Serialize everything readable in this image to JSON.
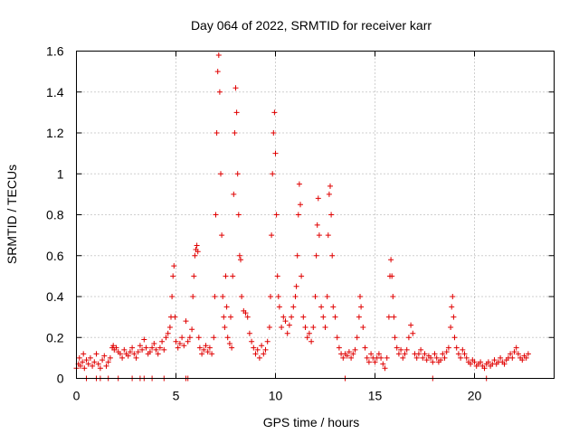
{
  "chart_data": {
    "type": "scatter",
    "title": "Day 064 of 2022, SRMTID for receiver karr",
    "xlabel": "GPS time / hours",
    "ylabel": "SRMTID / TECUs",
    "xlim": [
      0,
      24
    ],
    "ylim": [
      0,
      1.6
    ],
    "xticks": [
      0,
      5,
      10,
      15,
      20
    ],
    "xtick_labels": [
      "0",
      "5",
      "10",
      "15",
      "20"
    ],
    "yticks": [
      0,
      0.2,
      0.4,
      0.6,
      0.8,
      1.0,
      1.2,
      1.4,
      1.6
    ],
    "ytick_labels": [
      "0",
      "0.2",
      "0.4",
      "0.6",
      "0.8",
      "1",
      "1.2",
      "1.4",
      "1.6"
    ],
    "grid": true,
    "marker": "+",
    "marker_color": "#e00000",
    "series": [
      {
        "name": "SRMTID",
        "points": [
          [
            0.0,
            0.05
          ],
          [
            0.1,
            0.07
          ],
          [
            0.15,
            0.1
          ],
          [
            0.2,
            0.06
          ],
          [
            0.3,
            0.08
          ],
          [
            0.35,
            0.12
          ],
          [
            0.4,
            0.05
          ],
          [
            0.5,
            0.09
          ],
          [
            0.6,
            0.07
          ],
          [
            0.7,
            0.1
          ],
          [
            0.8,
            0.06
          ],
          [
            0.9,
            0.08
          ],
          [
            1.0,
            0.12
          ],
          [
            1.1,
            0.07
          ],
          [
            1.2,
            0.05
          ],
          [
            1.3,
            0.09
          ],
          [
            1.4,
            0.11
          ],
          [
            1.5,
            0.06
          ],
          [
            1.6,
            0.08
          ],
          [
            1.7,
            0.1
          ],
          [
            1.8,
            0.15
          ],
          [
            1.85,
            0.16
          ],
          [
            1.9,
            0.14
          ],
          [
            2.0,
            0.15
          ],
          [
            2.1,
            0.13
          ],
          [
            2.2,
            0.12
          ],
          [
            2.3,
            0.1
          ],
          [
            2.4,
            0.14
          ],
          [
            2.5,
            0.12
          ],
          [
            2.6,
            0.11
          ],
          [
            2.7,
            0.13
          ],
          [
            2.8,
            0.15
          ],
          [
            2.9,
            0.12
          ],
          [
            3.0,
            0.1
          ],
          [
            3.1,
            0.13
          ],
          [
            3.2,
            0.16
          ],
          [
            3.3,
            0.14
          ],
          [
            3.4,
            0.19
          ],
          [
            3.5,
            0.15
          ],
          [
            3.6,
            0.12
          ],
          [
            3.7,
            0.13
          ],
          [
            3.8,
            0.15
          ],
          [
            3.9,
            0.17
          ],
          [
            4.0,
            0.14
          ],
          [
            4.1,
            0.12
          ],
          [
            4.2,
            0.15
          ],
          [
            4.3,
            0.18
          ],
          [
            4.4,
            0.14
          ],
          [
            4.5,
            0.2
          ],
          [
            4.6,
            0.22
          ],
          [
            4.7,
            0.25
          ],
          [
            4.75,
            0.3
          ],
          [
            4.8,
            0.4
          ],
          [
            4.85,
            0.5
          ],
          [
            4.9,
            0.55
          ],
          [
            4.95,
            0.3
          ],
          [
            5.0,
            0.18
          ],
          [
            5.1,
            0.15
          ],
          [
            5.2,
            0.17
          ],
          [
            5.3,
            0.2
          ],
          [
            5.4,
            0.16
          ],
          [
            5.5,
            0.28
          ],
          [
            5.6,
            0.18
          ],
          [
            5.7,
            0.2
          ],
          [
            5.8,
            0.24
          ],
          [
            5.85,
            0.4
          ],
          [
            5.9,
            0.5
          ],
          [
            5.95,
            0.6
          ],
          [
            6.0,
            0.63
          ],
          [
            6.05,
            0.65
          ],
          [
            6.1,
            0.62
          ],
          [
            6.15,
            0.2
          ],
          [
            6.2,
            0.15
          ],
          [
            6.3,
            0.12
          ],
          [
            6.4,
            0.14
          ],
          [
            6.5,
            0.16
          ],
          [
            6.6,
            0.13
          ],
          [
            6.7,
            0.15
          ],
          [
            6.8,
            0.12
          ],
          [
            6.9,
            0.2
          ],
          [
            6.95,
            0.4
          ],
          [
            7.0,
            0.8
          ],
          [
            7.05,
            1.2
          ],
          [
            7.1,
            1.5
          ],
          [
            7.15,
            1.58
          ],
          [
            7.2,
            1.4
          ],
          [
            7.25,
            1.0
          ],
          [
            7.3,
            0.7
          ],
          [
            7.35,
            0.4
          ],
          [
            7.4,
            0.3
          ],
          [
            7.45,
            0.25
          ],
          [
            7.5,
            0.5
          ],
          [
            7.55,
            0.35
          ],
          [
            7.6,
            0.2
          ],
          [
            7.7,
            0.17
          ],
          [
            7.75,
            0.3
          ],
          [
            7.8,
            0.15
          ],
          [
            7.85,
            0.5
          ],
          [
            7.9,
            0.9
          ],
          [
            7.95,
            1.2
          ],
          [
            8.0,
            1.42
          ],
          [
            8.05,
            1.3
          ],
          [
            8.1,
            1.0
          ],
          [
            8.15,
            0.8
          ],
          [
            8.2,
            0.6
          ],
          [
            8.25,
            0.58
          ],
          [
            8.3,
            0.4
          ],
          [
            8.4,
            0.33
          ],
          [
            8.5,
            0.32
          ],
          [
            8.6,
            0.3
          ],
          [
            8.7,
            0.22
          ],
          [
            8.8,
            0.18
          ],
          [
            8.9,
            0.15
          ],
          [
            9.0,
            0.12
          ],
          [
            9.1,
            0.14
          ],
          [
            9.2,
            0.1
          ],
          [
            9.3,
            0.16
          ],
          [
            9.4,
            0.12
          ],
          [
            9.5,
            0.14
          ],
          [
            9.6,
            0.18
          ],
          [
            9.7,
            0.25
          ],
          [
            9.75,
            0.4
          ],
          [
            9.8,
            0.7
          ],
          [
            9.85,
            1.0
          ],
          [
            9.9,
            1.2
          ],
          [
            9.95,
            1.3
          ],
          [
            10.0,
            1.1
          ],
          [
            10.05,
            0.8
          ],
          [
            10.1,
            0.5
          ],
          [
            10.15,
            0.4
          ],
          [
            10.2,
            0.35
          ],
          [
            10.3,
            0.25
          ],
          [
            10.4,
            0.3
          ],
          [
            10.5,
            0.28
          ],
          [
            10.6,
            0.22
          ],
          [
            10.7,
            0.26
          ],
          [
            10.8,
            0.3
          ],
          [
            10.9,
            0.35
          ],
          [
            11.0,
            0.4
          ],
          [
            11.05,
            0.45
          ],
          [
            11.1,
            0.6
          ],
          [
            11.15,
            0.8
          ],
          [
            11.2,
            0.95
          ],
          [
            11.25,
            0.85
          ],
          [
            11.3,
            0.5
          ],
          [
            11.4,
            0.3
          ],
          [
            11.5,
            0.25
          ],
          [
            11.6,
            0.2
          ],
          [
            11.7,
            0.22
          ],
          [
            11.8,
            0.18
          ],
          [
            11.9,
            0.25
          ],
          [
            12.0,
            0.4
          ],
          [
            12.05,
            0.6
          ],
          [
            12.1,
            0.75
          ],
          [
            12.15,
            0.88
          ],
          [
            12.2,
            0.7
          ],
          [
            12.3,
            0.35
          ],
          [
            12.4,
            0.3
          ],
          [
            12.5,
            0.25
          ],
          [
            12.6,
            0.4
          ],
          [
            12.65,
            0.7
          ],
          [
            12.7,
            0.9
          ],
          [
            12.75,
            0.94
          ],
          [
            12.8,
            0.8
          ],
          [
            12.85,
            0.6
          ],
          [
            12.9,
            0.35
          ],
          [
            13.0,
            0.3
          ],
          [
            13.1,
            0.2
          ],
          [
            13.2,
            0.15
          ],
          [
            13.3,
            0.12
          ],
          [
            13.4,
            0.1
          ],
          [
            13.5,
            0.12
          ],
          [
            13.6,
            0.11
          ],
          [
            13.7,
            0.13
          ],
          [
            13.8,
            0.1
          ],
          [
            13.9,
            0.12
          ],
          [
            14.0,
            0.14
          ],
          [
            14.1,
            0.2
          ],
          [
            14.2,
            0.3
          ],
          [
            14.25,
            0.4
          ],
          [
            14.3,
            0.35
          ],
          [
            14.4,
            0.25
          ],
          [
            14.5,
            0.15
          ],
          [
            14.6,
            0.1
          ],
          [
            14.7,
            0.08
          ],
          [
            14.8,
            0.12
          ],
          [
            14.9,
            0.1
          ],
          [
            15.0,
            0.08
          ],
          [
            15.1,
            0.1
          ],
          [
            15.2,
            0.12
          ],
          [
            15.3,
            0.1
          ],
          [
            15.4,
            0.07
          ],
          [
            15.5,
            0.05
          ],
          [
            15.6,
            0.1
          ],
          [
            15.7,
            0.3
          ],
          [
            15.75,
            0.5
          ],
          [
            15.8,
            0.58
          ],
          [
            15.85,
            0.5
          ],
          [
            15.9,
            0.4
          ],
          [
            15.95,
            0.3
          ],
          [
            16.0,
            0.2
          ],
          [
            16.1,
            0.15
          ],
          [
            16.2,
            0.12
          ],
          [
            16.3,
            0.14
          ],
          [
            16.4,
            0.1
          ],
          [
            16.5,
            0.12
          ],
          [
            16.6,
            0.14
          ],
          [
            16.7,
            0.2
          ],
          [
            16.8,
            0.26
          ],
          [
            16.9,
            0.22
          ],
          [
            17.0,
            0.12
          ],
          [
            17.1,
            0.1
          ],
          [
            17.2,
            0.12
          ],
          [
            17.3,
            0.14
          ],
          [
            17.4,
            0.1
          ],
          [
            17.5,
            0.12
          ],
          [
            17.6,
            0.09
          ],
          [
            17.7,
            0.11
          ],
          [
            17.8,
            0.1
          ],
          [
            17.9,
            0.08
          ],
          [
            18.0,
            0.12
          ],
          [
            18.1,
            0.1
          ],
          [
            18.2,
            0.08
          ],
          [
            18.3,
            0.09
          ],
          [
            18.4,
            0.12
          ],
          [
            18.5,
            0.1
          ],
          [
            18.6,
            0.13
          ],
          [
            18.7,
            0.15
          ],
          [
            18.8,
            0.25
          ],
          [
            18.85,
            0.35
          ],
          [
            18.9,
            0.4
          ],
          [
            18.95,
            0.3
          ],
          [
            19.0,
            0.2
          ],
          [
            19.1,
            0.15
          ],
          [
            19.2,
            0.12
          ],
          [
            19.3,
            0.1
          ],
          [
            19.4,
            0.14
          ],
          [
            19.5,
            0.12
          ],
          [
            19.6,
            0.1
          ],
          [
            19.7,
            0.08
          ],
          [
            19.8,
            0.07
          ],
          [
            19.9,
            0.09
          ],
          [
            20.0,
            0.08
          ],
          [
            20.1,
            0.06
          ],
          [
            20.2,
            0.07
          ],
          [
            20.3,
            0.08
          ],
          [
            20.4,
            0.06
          ],
          [
            20.5,
            0.05
          ],
          [
            20.6,
            0.07
          ],
          [
            20.7,
            0.08
          ],
          [
            20.8,
            0.06
          ],
          [
            20.9,
            0.07
          ],
          [
            21.0,
            0.09
          ],
          [
            21.1,
            0.07
          ],
          [
            21.2,
            0.08
          ],
          [
            21.3,
            0.1
          ],
          [
            21.4,
            0.08
          ],
          [
            21.5,
            0.07
          ],
          [
            21.6,
            0.09
          ],
          [
            21.7,
            0.1
          ],
          [
            21.8,
            0.12
          ],
          [
            21.9,
            0.1
          ],
          [
            22.0,
            0.13
          ],
          [
            22.1,
            0.15
          ],
          [
            22.2,
            0.12
          ],
          [
            22.3,
            0.1
          ],
          [
            22.4,
            0.09
          ],
          [
            22.5,
            0.11
          ],
          [
            22.6,
            0.1
          ],
          [
            22.7,
            0.12
          ],
          [
            0.5,
            0.0
          ],
          [
            1.0,
            0.0
          ],
          [
            1.2,
            0.0
          ],
          [
            1.6,
            0.0
          ],
          [
            2.1,
            0.0
          ],
          [
            2.8,
            0.0
          ],
          [
            3.2,
            0.0
          ],
          [
            3.4,
            0.0
          ],
          [
            3.8,
            0.0
          ],
          [
            4.4,
            0.0
          ],
          [
            5.5,
            0.0
          ],
          [
            5.6,
            0.0
          ],
          [
            13.5,
            0.0
          ],
          [
            17.9,
            0.0
          ],
          [
            20.6,
            0.0
          ]
        ]
      }
    ]
  }
}
